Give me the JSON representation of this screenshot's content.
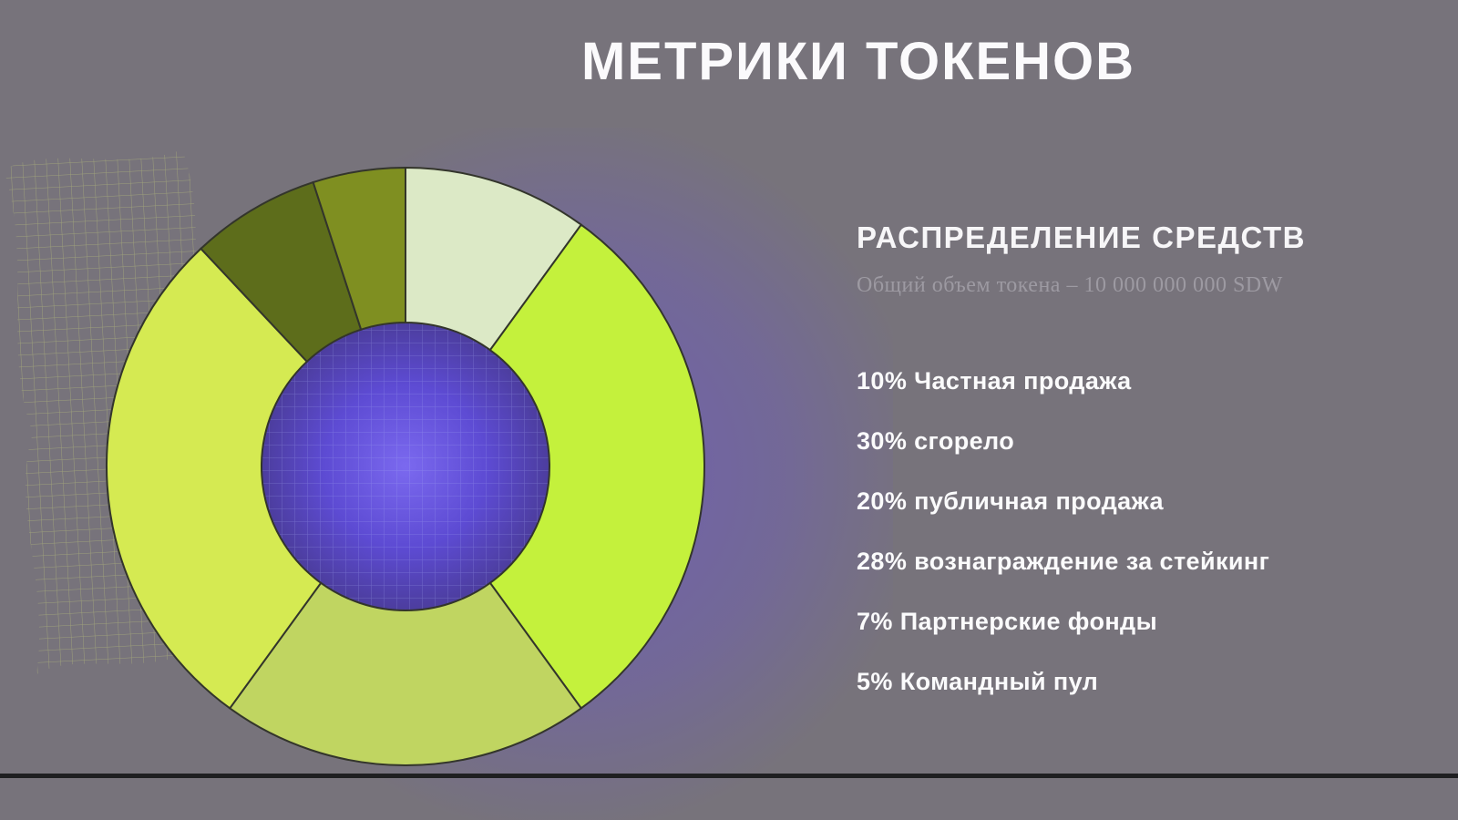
{
  "page": {
    "title": "МЕТРИКИ ТОКЕНОВ",
    "background_color": "#77737b",
    "accent_purple": "#684ede"
  },
  "panel": {
    "heading": "РАСПРЕДЕЛЕНИЕ СРЕДСТВ",
    "subtitle": "Общий объем токена – 10 000 000 000 SDW"
  },
  "chart_data": {
    "type": "pie",
    "variant": "donut",
    "title": "РАСПРЕДЕЛЕНИЕ СРЕДСТВ",
    "subtitle": "Общий объем токена – 10 000 000 000 SDW",
    "total_supply": "10 000 000 000 SDW",
    "start_angle_deg": 0,
    "direction": "clockwise",
    "stroke_color": "#33352b",
    "center_style": "purple radial gradient with wireframe mesh",
    "legend_position": "right",
    "segments": [
      {
        "id": "private-sale",
        "label": "Частная продажа",
        "percent": 10,
        "color": "#dce9c6",
        "list_text": "10% Частная продажа"
      },
      {
        "id": "burned",
        "label": "сгорело",
        "percent": 30,
        "color": "#c4f13c",
        "list_text": "30% сгорело"
      },
      {
        "id": "public-sale",
        "label": "публичная продажа",
        "percent": 20,
        "color": "#c0d561",
        "list_text": "20% публичная продажа"
      },
      {
        "id": "staking-rewards",
        "label": "вознаграждение за стейкинг",
        "percent": 28,
        "color": "#d5ea52",
        "list_text": "28% вознаграждение за стейкинг"
      },
      {
        "id": "partner-funds",
        "label": "Партнерские фонды",
        "percent": 7,
        "color": "#5d6d1b",
        "list_text": "7% Партнерские фонды"
      },
      {
        "id": "team-pool",
        "label": "Командный пул",
        "percent": 5,
        "color": "#7f8f21",
        "list_text": "5% Командный пул"
      }
    ]
  }
}
